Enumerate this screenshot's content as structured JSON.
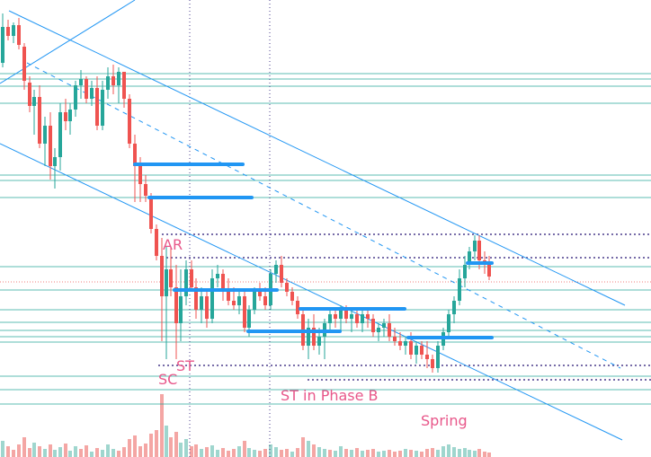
{
  "chart_data": {
    "type": "candlestick",
    "colors": {
      "up": "#26a69a",
      "down": "#ef5350",
      "volume_up": "#9fd6ce",
      "volume_down": "#f4a6a4",
      "level_line": "#26a69a",
      "trend_line": "#2196f3",
      "marker_line": "#2196f3",
      "dotted_level": "#4a3c8c",
      "current_price": "#ef5350",
      "label": "#e8578a"
    },
    "annotations": [
      {
        "text": "AR",
        "candle": 22
      },
      {
        "text": "SC",
        "candle": 22
      },
      {
        "text": "ST",
        "candle": 25
      },
      {
        "text": "ST in Phase B",
        "candle": 42
      },
      {
        "text": "Spring",
        "candle": 59
      }
    ]
  }
}
